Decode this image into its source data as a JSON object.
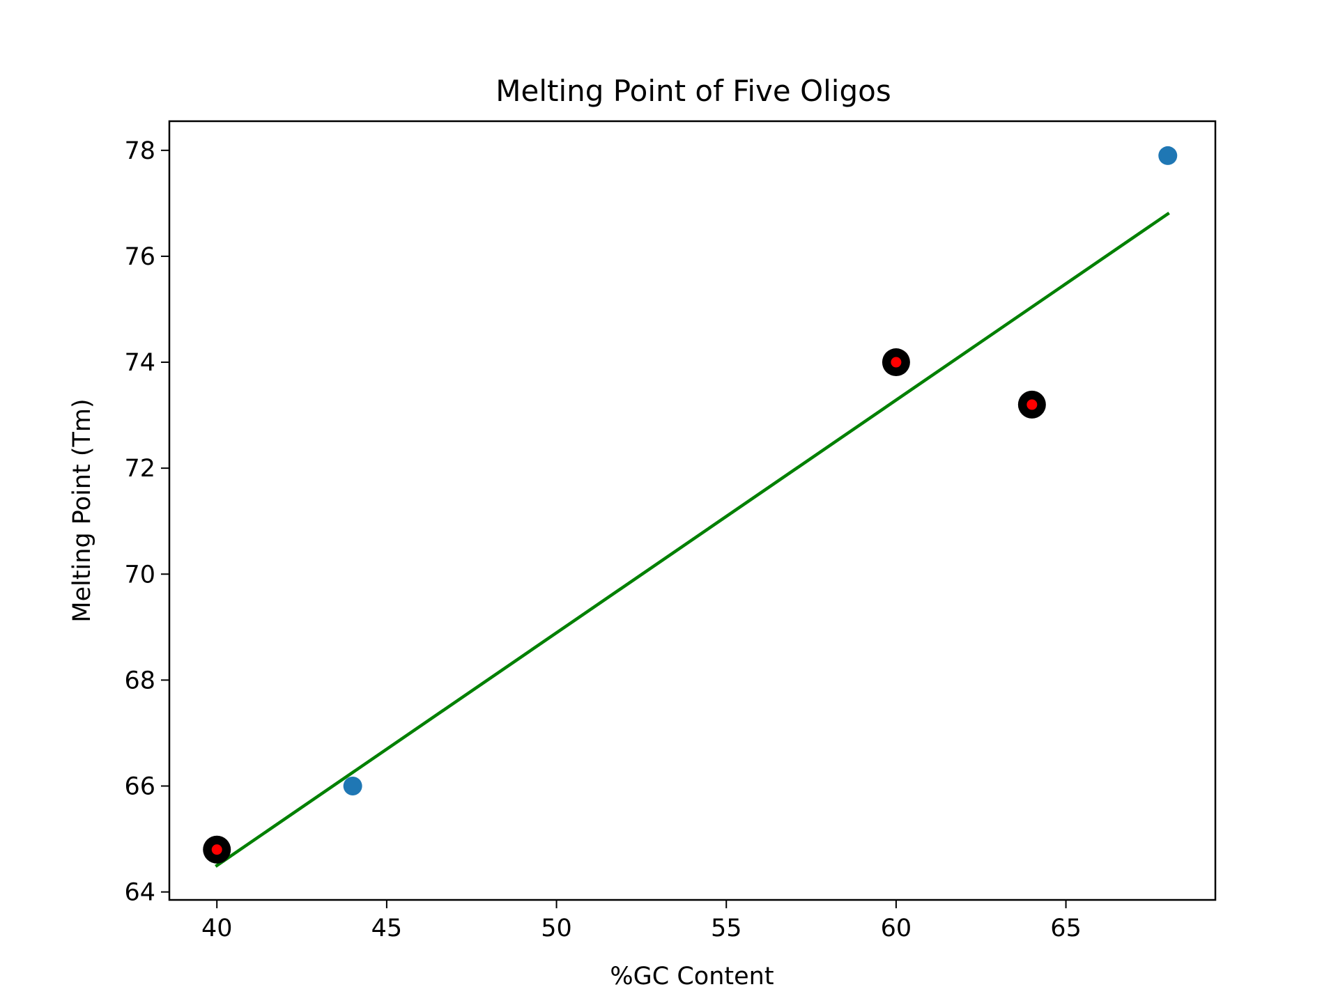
{
  "chart_data": {
    "type": "scatter",
    "title": "Melting Point of Five Oligos",
    "xlabel": "%GC Content",
    "ylabel": "Melting Point (Tm)",
    "xlim": [
      38.6,
      69.4
    ],
    "ylim": [
      63.85,
      78.55
    ],
    "xticks": [
      40,
      45,
      50,
      55,
      60,
      65
    ],
    "yticks": [
      64,
      66,
      68,
      70,
      72,
      74,
      76,
      78
    ],
    "grid": false,
    "series": [
      {
        "kind": "scatter",
        "color": "#1f77b4",
        "points": [
          {
            "x": 44,
            "y": 66.0
          },
          {
            "x": 68,
            "y": 77.9
          }
        ]
      },
      {
        "kind": "highlighted-scatter",
        "outer_color": "#000000",
        "inner_color": "#ff0000",
        "points": [
          {
            "x": 40,
            "y": 64.8
          },
          {
            "x": 60,
            "y": 74.0
          },
          {
            "x": 64,
            "y": 73.2
          }
        ]
      },
      {
        "kind": "fit-line",
        "color": "#008000",
        "points": [
          {
            "x": 40,
            "y": 64.5
          },
          {
            "x": 68,
            "y": 76.8
          }
        ]
      }
    ]
  }
}
